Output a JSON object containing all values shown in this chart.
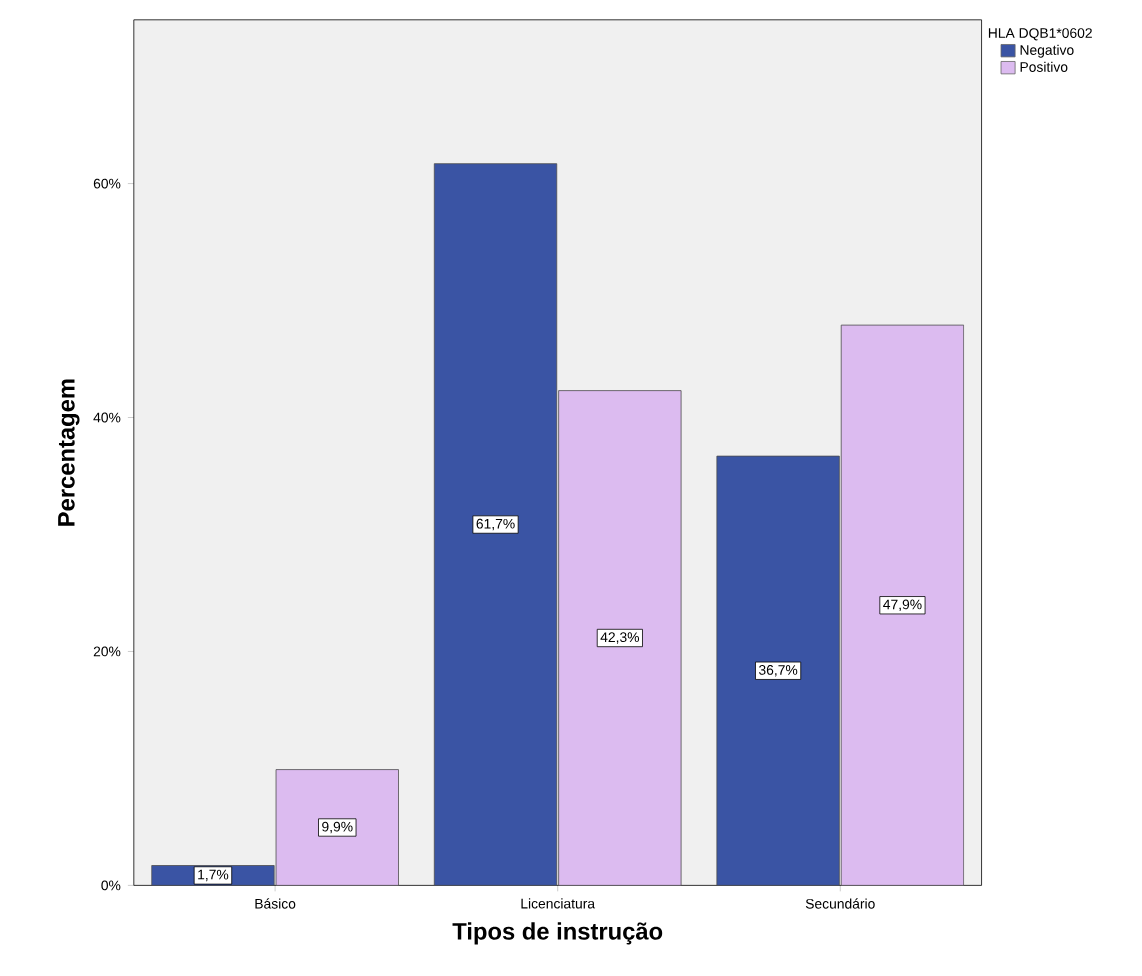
{
  "chart_data": {
    "type": "bar",
    "xlabel": "Tipos de instrução",
    "ylabel": "Percentagem",
    "legend_title": "HLA DQB1*0602",
    "legend": "top right",
    "categories": [
      "Básico",
      "Licenciatura",
      "Secundário"
    ],
    "series": [
      {
        "name": "Negativo",
        "color": "#3a54a4",
        "values": [
          1.7,
          61.7,
          36.7
        ],
        "value_labels": [
          "1,7%",
          "61,7%",
          "36,7%"
        ]
      },
      {
        "name": "Positivo",
        "color": "#dcbbf0",
        "values": [
          9.9,
          42.3,
          47.9
        ],
        "value_labels": [
          "9,9%",
          "42,3%",
          "47,9%"
        ]
      }
    ],
    "ylim": [
      0,
      74
    ],
    "yticks": [
      {
        "value": 0,
        "label": "0%"
      },
      {
        "value": 20,
        "label": "20%"
      },
      {
        "value": 40,
        "label": "40%"
      },
      {
        "value": 60,
        "label": "60%"
      }
    ]
  }
}
